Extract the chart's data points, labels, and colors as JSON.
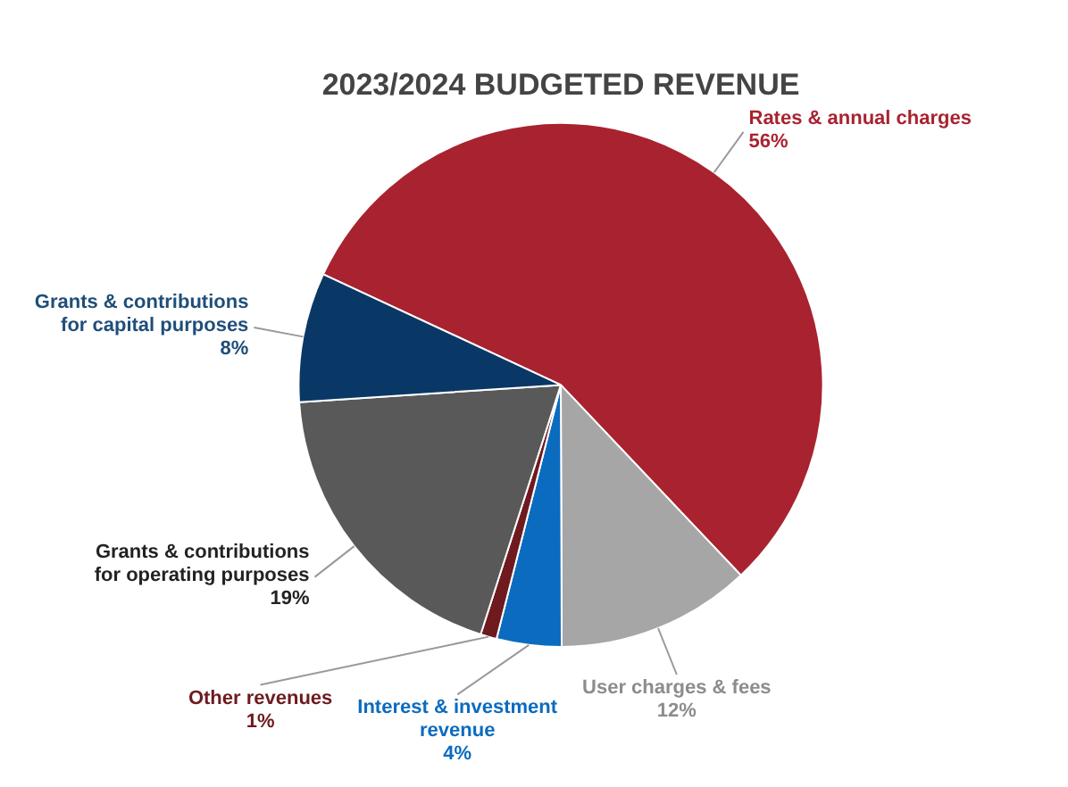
{
  "chart_data": {
    "type": "pie",
    "title": "2023/2024 BUDGETED REVENUE",
    "categories": [
      "Rates & annual charges",
      "User charges & fees",
      "Interest & investment revenue",
      "Other revenues",
      "Grants & contributions for operating purposes",
      "Grants & contributions for capital purposes"
    ],
    "values": [
      56,
      12,
      4,
      1,
      19,
      8
    ],
    "value_labels": [
      "56%",
      "12%",
      "4%",
      "1%",
      "19%",
      "8%"
    ],
    "colors": [
      "#a8232f",
      "#a6a6a6",
      "#0b6bbf",
      "#6e1a1f",
      "#595959",
      "#0a3866"
    ],
    "legend": false
  }
}
